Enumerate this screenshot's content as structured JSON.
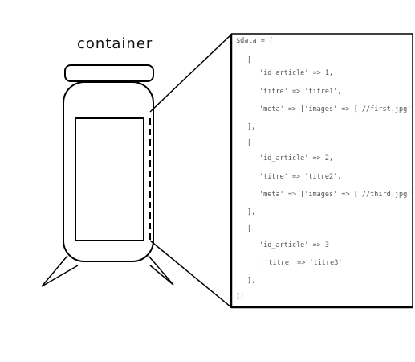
{
  "diagram": {
    "title": "container",
    "code_lines": [
      "$data = [",
      "[",
      "'id_article' => 1,",
      "'titre' => 'titre1',",
      "'meta' => ['images' => ['//first.jpg', '//second.jpg']]",
      "],",
      "[",
      "'id_article' => 2,",
      "'titre' => 'titre2',",
      "'meta' => ['images' => ['//third.jpg']]",
      "],",
      "[",
      "'id_article' => 3",
      ", 'titre' => 'titre3'",
      "],",
      "];"
    ],
    "stroke_color": "#000000",
    "code_color": "#555555"
  }
}
